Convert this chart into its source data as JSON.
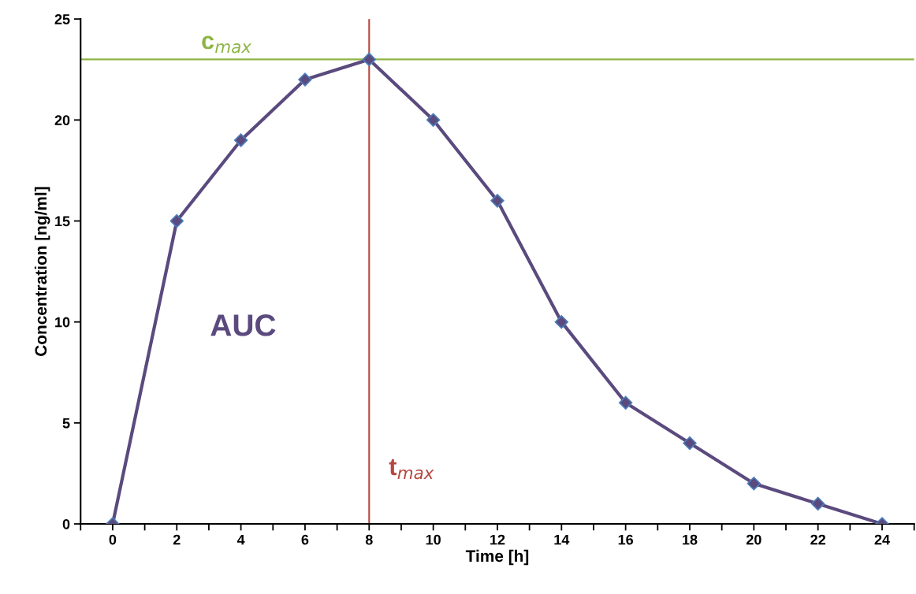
{
  "chart_data": {
    "type": "line",
    "xlabel": "Time [h]",
    "ylabel": "Concentration [ng/ml]",
    "x": [
      0,
      2,
      4,
      6,
      8,
      10,
      12,
      14,
      16,
      18,
      20,
      22,
      24
    ],
    "series": [
      {
        "color": "#5b4a7e",
        "values": [
          0,
          15,
          19,
          22,
          23,
          20,
          16,
          10,
          6,
          4,
          2,
          1,
          0
        ]
      }
    ],
    "marker": "diamond",
    "line_style": "solid",
    "xlim": [
      -1,
      25
    ],
    "xticks": [
      {
        "value": -1,
        "label": null
      },
      0,
      {
        "value": 1,
        "label": null
      },
      2,
      {
        "value": 3,
        "label": null
      },
      4,
      {
        "value": 5,
        "label": null
      },
      6,
      {
        "value": 7,
        "label": null
      },
      8,
      {
        "value": 9,
        "label": null
      },
      10,
      {
        "value": 11,
        "label": null
      },
      12,
      {
        "value": 13,
        "label": null
      },
      14,
      {
        "value": 15,
        "label": null
      },
      16,
      {
        "value": 17,
        "label": null
      },
      18,
      {
        "value": 19,
        "label": null
      },
      20,
      {
        "value": 21,
        "label": null
      },
      22,
      {
        "value": 23,
        "label": null
      },
      24,
      {
        "value": 25,
        "label": null
      }
    ],
    "ylim": [
      0,
      25
    ],
    "yticks": [
      0,
      5,
      10,
      15,
      20,
      25
    ],
    "ref_lines": [
      {
        "axis": "y",
        "value": 23,
        "label": "c$_{max}$",
        "color": "#8db545"
      },
      {
        "axis": "x",
        "value": 8,
        "label": "t$_{max}$",
        "color": "#b5473f"
      }
    ],
    "annotations": [
      "AUC"
    ]
  }
}
